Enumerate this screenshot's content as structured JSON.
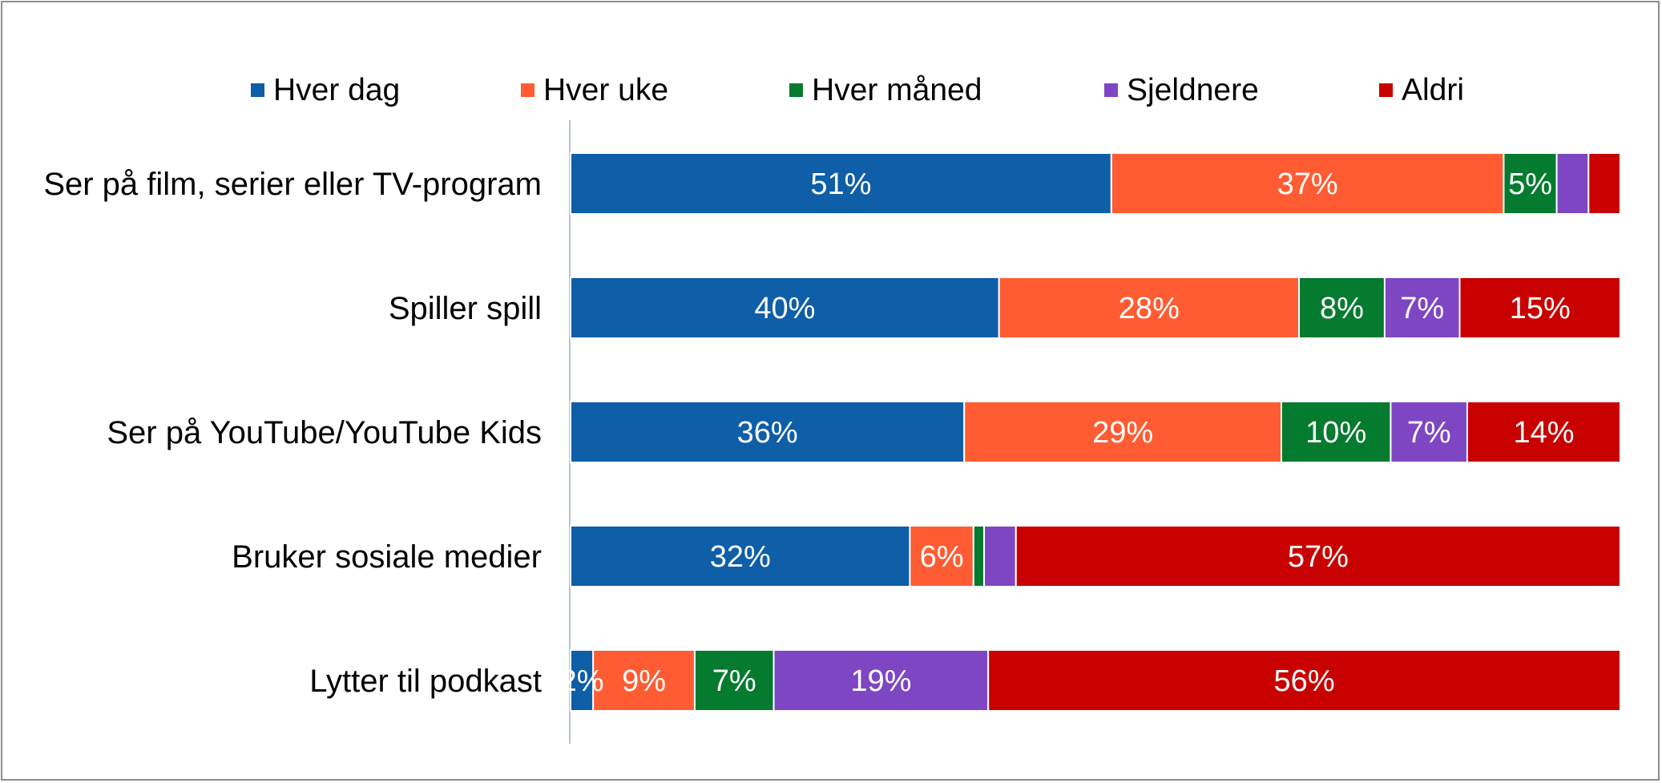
{
  "chart_data": {
    "type": "bar",
    "orientation": "horizontal",
    "stacked": true,
    "normalized": true,
    "legend": {
      "placement": "top"
    },
    "grid": false,
    "xlim": [
      0,
      100
    ],
    "categories": [
      "Ser på film, serier eller TV-program",
      "Spiller spill",
      "Ser på YouTube/YouTube Kids",
      "Bruker sosiale medier",
      "Lytter til podkast"
    ],
    "series": [
      {
        "name": "Hver dag",
        "color": "#0e5ea8",
        "values": [
          51,
          40,
          36,
          32,
          2
        ]
      },
      {
        "name": "Hver uke",
        "color": "#ff5c33",
        "values": [
          37,
          28,
          29,
          6,
          9
        ]
      },
      {
        "name": "Hver måned",
        "color": "#047b2e",
        "values": [
          5,
          8,
          10,
          1,
          7
        ]
      },
      {
        "name": "Sjeldnere",
        "color": "#7e46c3",
        "values": [
          3,
          7,
          7,
          3,
          19
        ]
      },
      {
        "name": "Aldri",
        "color": "#c80000",
        "values": [
          3,
          15,
          14,
          57,
          56
        ]
      }
    ],
    "data_labels": [
      [
        "51%",
        "37%",
        "5%",
        "",
        ""
      ],
      [
        "40%",
        "28%",
        "8%",
        "7%",
        "15%"
      ],
      [
        "36%",
        "29%",
        "10%",
        "7%",
        "14%"
      ],
      [
        "32%",
        "6%",
        "",
        "",
        "57%"
      ],
      [
        "2%",
        "9%",
        "7%",
        "19%",
        "56%"
      ]
    ]
  }
}
